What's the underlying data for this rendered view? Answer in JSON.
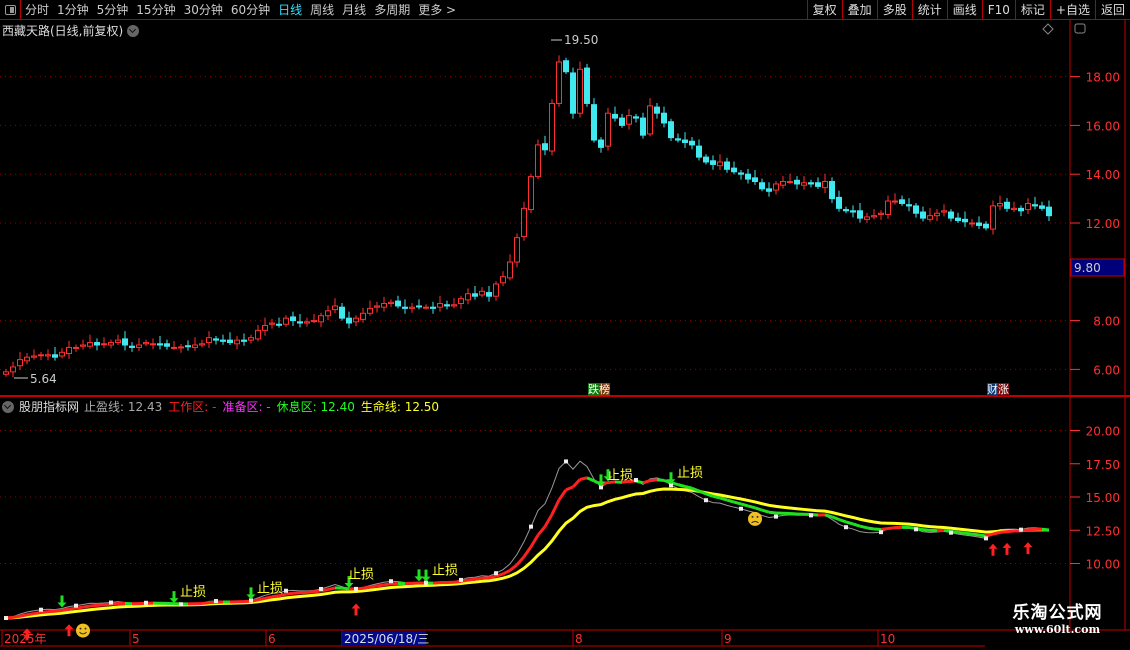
{
  "toolbar": {
    "periods": [
      "分时",
      "1分钟",
      "5分钟",
      "15分钟",
      "30分钟",
      "60分钟",
      "日线",
      "周线",
      "月线",
      "多周期",
      "更多 >"
    ],
    "active_period": "日线",
    "buttons": [
      "复权",
      "叠加",
      "多股",
      "统计",
      "画线",
      "F10",
      "标记",
      "+自选",
      "返回"
    ]
  },
  "main": {
    "title": "西藏天路(日线,前复权)",
    "max_label": "19.50",
    "min_label": "5.64",
    "cursor_price": "9.80",
    "y_ticks": [
      "18.00",
      "16.00",
      "14.00",
      "12.00",
      "8.00",
      "6.00"
    ],
    "tags": [
      {
        "text1": "跌",
        "text2": "榜"
      },
      {
        "text1": "财",
        "text2": "涨"
      }
    ]
  },
  "indicator": {
    "name": "股朋指标网",
    "items": [
      {
        "label": "止盈线: 12.43",
        "color": "#aaaaaa"
      },
      {
        "label": "工作区: -",
        "color": "#ff2020"
      },
      {
        "label": "准备区: -",
        "color": "#ff30ff"
      },
      {
        "label": "休息区: 12.40",
        "color": "#20ff20"
      },
      {
        "label": "生命线: 12.50",
        "color": "#ffff20"
      }
    ],
    "y_ticks": [
      "20.00",
      "17.50",
      "15.00",
      "12.50",
      "10.00"
    ],
    "stop_label": "止损"
  },
  "x_axis": {
    "labels": [
      "2025年",
      "5",
      "6",
      "2025/06/18/三",
      "8",
      "9",
      "10"
    ]
  },
  "watermark": {
    "line1": "乐淘公式网",
    "line2": "www.60lt.com"
  },
  "colors": {
    "up": "#ff3030",
    "down": "#40e8f0",
    "grid": "#8b0000",
    "axis": "#ff3030"
  },
  "chart_data": {
    "type": "candlestick",
    "close": [
      5.9,
      6.1,
      6.4,
      6.5,
      6.55,
      6.6,
      6.6,
      6.5,
      6.7,
      6.9,
      6.9,
      7.0,
      7.1,
      7.0,
      7.05,
      7.1,
      7.2,
      7.0,
      6.9,
      7.0,
      7.1,
      7.05,
      7.0,
      6.95,
      6.9,
      6.92,
      6.95,
      7.0,
      7.05,
      7.3,
      7.2,
      7.15,
      7.1,
      7.2,
      7.15,
      7.3,
      7.6,
      7.8,
      7.9,
      7.85,
      8.1,
      8.0,
      7.9,
      7.95,
      8.0,
      8.2,
      8.4,
      8.6,
      8.1,
      7.9,
      8.1,
      8.3,
      8.5,
      8.6,
      8.7,
      8.75,
      8.6,
      8.5,
      8.55,
      8.6,
      8.55,
      8.5,
      8.7,
      8.6,
      8.65,
      8.9,
      9.1,
      9.0,
      9.2,
      9.0,
      9.5,
      9.8,
      10.4,
      11.4,
      12.6,
      13.9,
      15.2,
      15.0,
      16.9,
      18.6,
      18.2,
      16.5,
      18.3,
      16.9,
      15.4,
      15.1,
      16.5,
      16.3,
      16.0,
      16.4,
      16.3,
      15.6,
      16.8,
      16.5,
      16.1,
      15.5,
      15.4,
      15.3,
      15.2,
      14.7,
      14.5,
      14.4,
      14.5,
      14.2,
      14.1,
      14.0,
      13.8,
      13.7,
      13.4,
      13.3,
      13.6,
      13.7,
      13.7,
      13.6,
      13.65,
      13.6,
      13.5,
      13.7,
      13.0,
      12.6,
      12.5,
      12.45,
      12.2,
      12.25,
      12.3,
      12.4,
      12.9,
      12.9,
      12.8,
      12.7,
      12.4,
      12.2,
      12.3,
      12.4,
      12.5,
      12.2,
      12.1,
      12.05,
      12.0,
      11.9,
      11.8,
      12.7,
      12.8,
      12.6,
      12.6,
      12.5,
      12.8,
      12.7,
      12.6,
      12.3
    ],
    "price_ylim": [
      5.0,
      20.0
    ],
    "indicator_ylim": [
      7.5,
      22.5
    ],
    "signals": {
      "stop_loss_labels": [
        24,
        35,
        48,
        60,
        85,
        95
      ],
      "buy_arrows": [
        3,
        9,
        50,
        141,
        143,
        146
      ],
      "sell_arrows": [
        8,
        24,
        35,
        49,
        59,
        60,
        85,
        86,
        95
      ],
      "smile": [
        11
      ],
      "frown": [
        107
      ]
    }
  }
}
